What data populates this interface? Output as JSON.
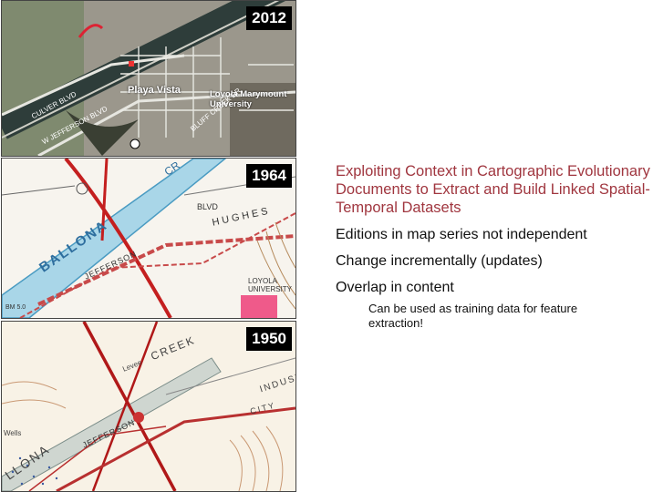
{
  "maps": [
    {
      "year": "2012",
      "labels": {
        "city": "Playa Vista",
        "university": "Loyola Marymount University",
        "road1": "CULVER BLVD",
        "road2": "W JEFFERSON BLVD",
        "road3": "BLUFF CREEK DR"
      }
    },
    {
      "year": "1964",
      "labels": {
        "river": "BALLONA",
        "river2": "CR",
        "road1": "HUGHES",
        "road2": "JEFFERSON",
        "university": "LOYOLA UNIVERSITY",
        "blvd": "BLVD",
        "bm": "BM 5.0"
      }
    },
    {
      "year": "1950",
      "labels": {
        "creek": "CREEK",
        "levee": "Levee",
        "road": "JEFFERSON",
        "ballona": "LLONA",
        "industry": "INDUST",
        "city": "CITY",
        "wells": "Wells"
      }
    }
  ],
  "slide": {
    "title": "Exploiting Context in Cartographic Evolutionary Documents to Extract and Build Linked Spatial-Temporal Datasets",
    "bullets": [
      "Editions in map series not independent",
      "Change incrementally (updates)",
      "Overlap in content"
    ],
    "sub_bullet": "Can be used as training data for feature extraction!"
  }
}
